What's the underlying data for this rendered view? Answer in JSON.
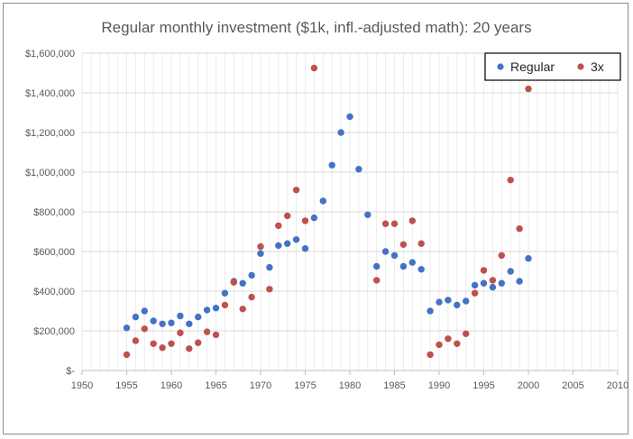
{
  "chart_data": {
    "type": "scatter",
    "title": "Regular monthly investment ($1k, infl.-adjusted math): 20 years",
    "xlabel": "",
    "ylabel": "",
    "xlim": [
      1950,
      2010
    ],
    "ylim": [
      0,
      1600000
    ],
    "x_ticks": [
      "1950",
      "1955",
      "1960",
      "1965",
      "1970",
      "1975",
      "1980",
      "1985",
      "1990",
      "1995",
      "2000",
      "2005",
      "2010"
    ],
    "y_ticks": [
      "$-",
      "$200,000",
      "$400,000",
      "$600,000",
      "$800,000",
      "$1,000,000",
      "$1,200,000",
      "$1,400,000",
      "$1,600,000"
    ],
    "grid": true,
    "legend_position": "top-right",
    "series": [
      {
        "name": "Regular",
        "color": "#4472c4",
        "x": [
          1955,
          1956,
          1957,
          1958,
          1959,
          1960,
          1961,
          1962,
          1963,
          1964,
          1965,
          1966,
          1967,
          1968,
          1969,
          1970,
          1971,
          1972,
          1973,
          1974,
          1975,
          1976,
          1977,
          1978,
          1979,
          1980,
          1981,
          1982,
          1983,
          1984,
          1985,
          1986,
          1987,
          1988,
          1989,
          1990,
          1991,
          1992,
          1993,
          1994,
          1995,
          1996,
          1997,
          1998,
          1999,
          2000
        ],
        "y": [
          215000,
          270000,
          300000,
          250000,
          235000,
          240000,
          275000,
          235000,
          270000,
          305000,
          315000,
          390000,
          450000,
          440000,
          480000,
          590000,
          520000,
          630000,
          640000,
          660000,
          615000,
          770000,
          855000,
          1035000,
          1200000,
          1280000,
          1015000,
          785000,
          525000,
          600000,
          580000,
          525000,
          545000,
          510000,
          300000,
          345000,
          355000,
          330000,
          350000,
          430000,
          440000,
          420000,
          440000,
          500000,
          450000,
          565000
        ]
      },
      {
        "name": "3x",
        "color": "#c0504d",
        "x": [
          1955,
          1956,
          1957,
          1958,
          1959,
          1960,
          1961,
          1962,
          1963,
          1964,
          1965,
          1966,
          1967,
          1968,
          1969,
          1970,
          1971,
          1972,
          1973,
          1974,
          1975,
          1976,
          1983,
          1984,
          1985,
          1986,
          1987,
          1988,
          1989,
          1990,
          1991,
          1992,
          1993,
          1994,
          1995,
          1996,
          1997,
          1998,
          1999,
          2000
        ],
        "y": [
          80000,
          150000,
          210000,
          135000,
          115000,
          135000,
          190000,
          110000,
          140000,
          195000,
          180000,
          330000,
          445000,
          310000,
          370000,
          625000,
          410000,
          730000,
          780000,
          910000,
          755000,
          1525000,
          455000,
          740000,
          740000,
          635000,
          755000,
          640000,
          80000,
          130000,
          160000,
          135000,
          185000,
          390000,
          505000,
          455000,
          580000,
          960000,
          715000,
          1420000
        ]
      }
    ]
  }
}
